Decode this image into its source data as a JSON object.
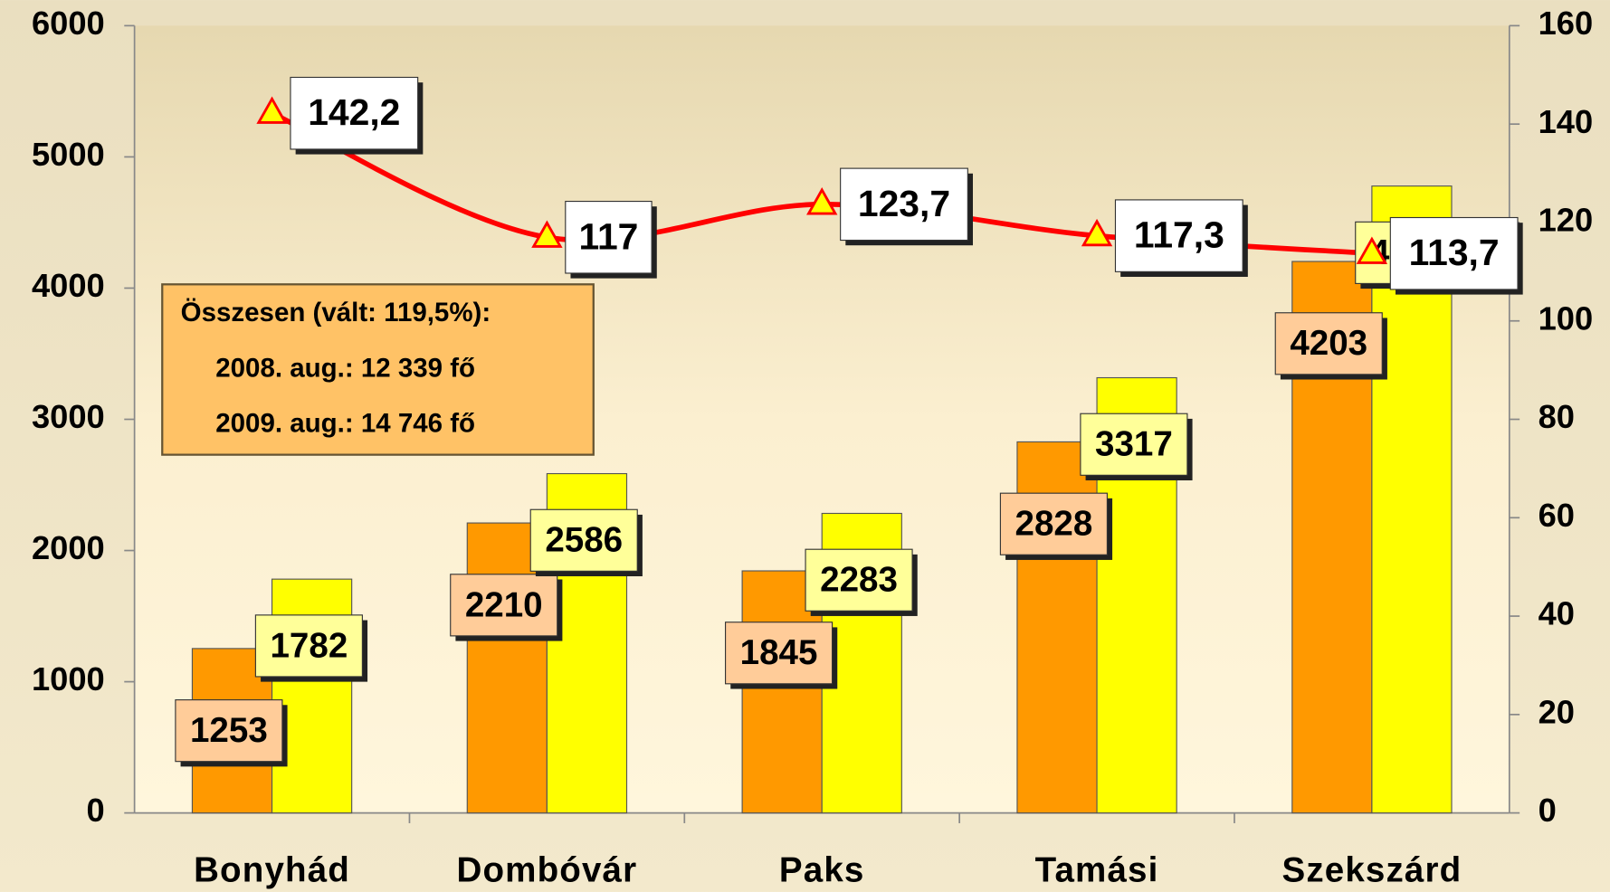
{
  "chart_data": {
    "type": "bar",
    "categories": [
      "Bonyhád",
      "Dombóvár",
      "Paks",
      "Tamási",
      "Szekszárd"
    ],
    "series": [
      {
        "color": "#ff9900",
        "values": [
          1253,
          2210,
          1845,
          2828,
          4203
        ]
      },
      {
        "color": "#ffff00",
        "values": [
          1782,
          2586,
          2283,
          3317,
          4778
        ]
      },
      {
        "type": "line",
        "axis": "y2",
        "color": "#ff0000",
        "values": [
          142.2,
          117,
          123.7,
          117.3,
          113.7
        ],
        "value_labels": [
          "142,2",
          "117",
          "123,7",
          "117,3",
          "113,7"
        ]
      }
    ],
    "ylim": [
      0,
      6000
    ],
    "yticks": [
      0,
      1000,
      2000,
      3000,
      4000,
      5000,
      6000
    ],
    "y2lim": [
      0,
      160
    ],
    "y2ticks": [
      0,
      20,
      40,
      60,
      80,
      100,
      120,
      140,
      160
    ],
    "annotations": [
      "Összesen (vált: 119,5%):",
      "2008. aug.: 12 339 fő",
      "2009. aug.: 14 746 fő"
    ]
  }
}
